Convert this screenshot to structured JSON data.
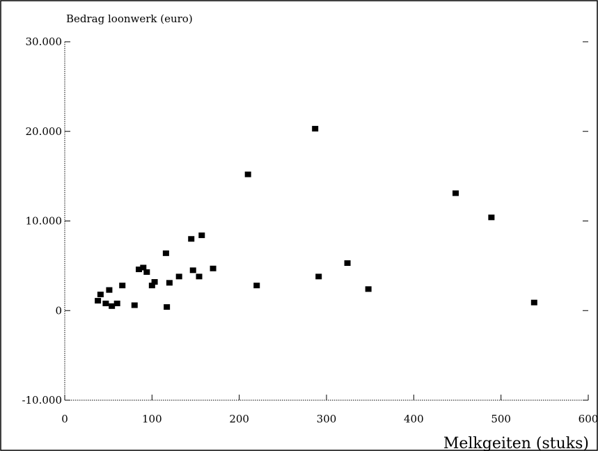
{
  "chart_data": {
    "type": "scatter",
    "title": "",
    "ylabel": "Bedrag loonwerk (euro)",
    "xlabel": "Melkgeiten (stuks)",
    "xlim": [
      0,
      600
    ],
    "ylim": [
      -10000,
      30000
    ],
    "x_ticks": [
      0,
      100,
      200,
      300,
      400,
      500,
      600
    ],
    "x_tick_labels": [
      "0",
      "100",
      "200",
      "300",
      "400",
      "500",
      "600"
    ],
    "y_ticks": [
      -10000,
      0,
      10000,
      20000,
      30000
    ],
    "y_tick_labels": [
      "-10.000",
      "0",
      "10.000",
      "20.000",
      "30.000"
    ],
    "grid": false,
    "marker_color": "#000000",
    "points": [
      {
        "x": 38,
        "y": 1100
      },
      {
        "x": 41,
        "y": 1800
      },
      {
        "x": 47,
        "y": 800
      },
      {
        "x": 51,
        "y": 2300
      },
      {
        "x": 54,
        "y": 500
      },
      {
        "x": 60,
        "y": 800
      },
      {
        "x": 66,
        "y": 2800
      },
      {
        "x": 80,
        "y": 600
      },
      {
        "x": 85,
        "y": 4600
      },
      {
        "x": 90,
        "y": 4800
      },
      {
        "x": 94,
        "y": 4300
      },
      {
        "x": 100,
        "y": 2800
      },
      {
        "x": 103,
        "y": 3200
      },
      {
        "x": 116,
        "y": 6400
      },
      {
        "x": 117,
        "y": 400
      },
      {
        "x": 120,
        "y": 3100
      },
      {
        "x": 131,
        "y": 3800
      },
      {
        "x": 145,
        "y": 8000
      },
      {
        "x": 147,
        "y": 4500
      },
      {
        "x": 154,
        "y": 3800
      },
      {
        "x": 157,
        "y": 8400
      },
      {
        "x": 170,
        "y": 4700
      },
      {
        "x": 210,
        "y": 15200
      },
      {
        "x": 220,
        "y": 2800
      },
      {
        "x": 287,
        "y": 20300
      },
      {
        "x": 291,
        "y": 3800
      },
      {
        "x": 324,
        "y": 5300
      },
      {
        "x": 348,
        "y": 2400
      },
      {
        "x": 448,
        "y": 13100
      },
      {
        "x": 489,
        "y": 10400
      },
      {
        "x": 538,
        "y": 900
      }
    ]
  }
}
